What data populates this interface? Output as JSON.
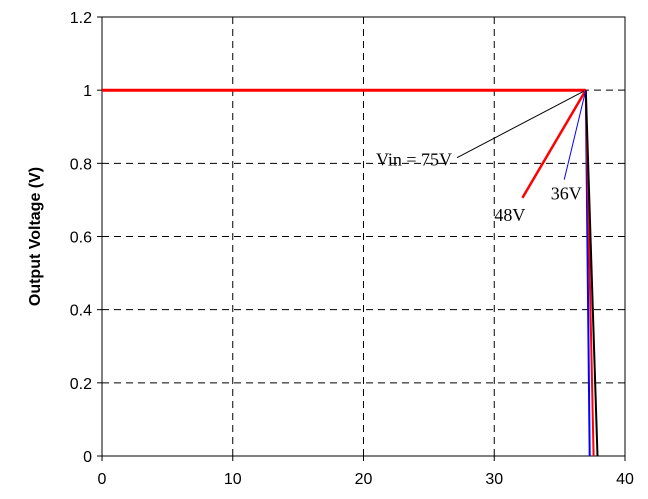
{
  "chart_data": {
    "type": "line",
    "title": "",
    "xlabel": "",
    "ylabel": "Output Voltage (V)",
    "xlim": [
      0,
      40
    ],
    "ylim": [
      0,
      1.2
    ],
    "x_ticks": [
      "0",
      "10",
      "20",
      "30",
      "40"
    ],
    "y_ticks": [
      "0",
      "0.2",
      "0.4",
      "0.6",
      "0.8",
      "1",
      "1.2"
    ],
    "grid": true,
    "series": [
      {
        "points": [
          [
            0,
            1.0
          ],
          [
            37,
            1.0
          ]
        ],
        "color": "#ff0000"
      },
      {
        "points": [
          [
            37,
            1.0
          ],
          [
            37.3,
            0.0
          ]
        ],
        "color": "#0000ff"
      },
      {
        "points": [
          [
            37,
            1.0
          ],
          [
            37.6,
            0.0
          ]
        ],
        "color": "#ff0000"
      },
      {
        "points": [
          [
            37,
            1.0
          ],
          [
            37.9,
            0.0
          ]
        ],
        "color": "#000000"
      }
    ],
    "annotations": [
      {
        "text": "Vin = 75V",
        "point": [
          37,
          1.0
        ],
        "label_at": [
          27.0,
          0.81
        ],
        "color": "#000000"
      },
      {
        "text": "48V",
        "point": [
          37,
          1.0
        ],
        "label_at": [
          32.0,
          0.7
        ],
        "color": "#ff0000"
      },
      {
        "text": "36V",
        "point": [
          37,
          1.0
        ],
        "label_at": [
          35.2,
          0.75
        ],
        "color": "#0000ff"
      }
    ]
  }
}
